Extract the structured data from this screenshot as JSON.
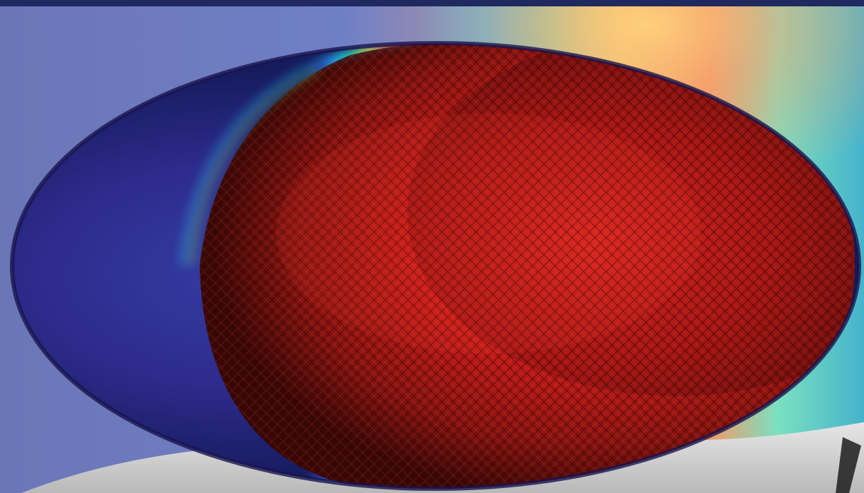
{
  "image": {
    "subject": "ellipsoid-colormap-mesh"
  },
  "colors": {
    "background_left": "#6e79b8",
    "background_right": "#58c8b0",
    "band_yellow": "#f4e77b",
    "band_orange": "#f2a36c",
    "ellipsoid_blue": "#2d2f95",
    "ellipsoid_red": "#c51a18",
    "ellipsoid_dark_red": "#5a0d0a",
    "bottom_band": "#d8d8d8",
    "top_band": "#20295f"
  }
}
